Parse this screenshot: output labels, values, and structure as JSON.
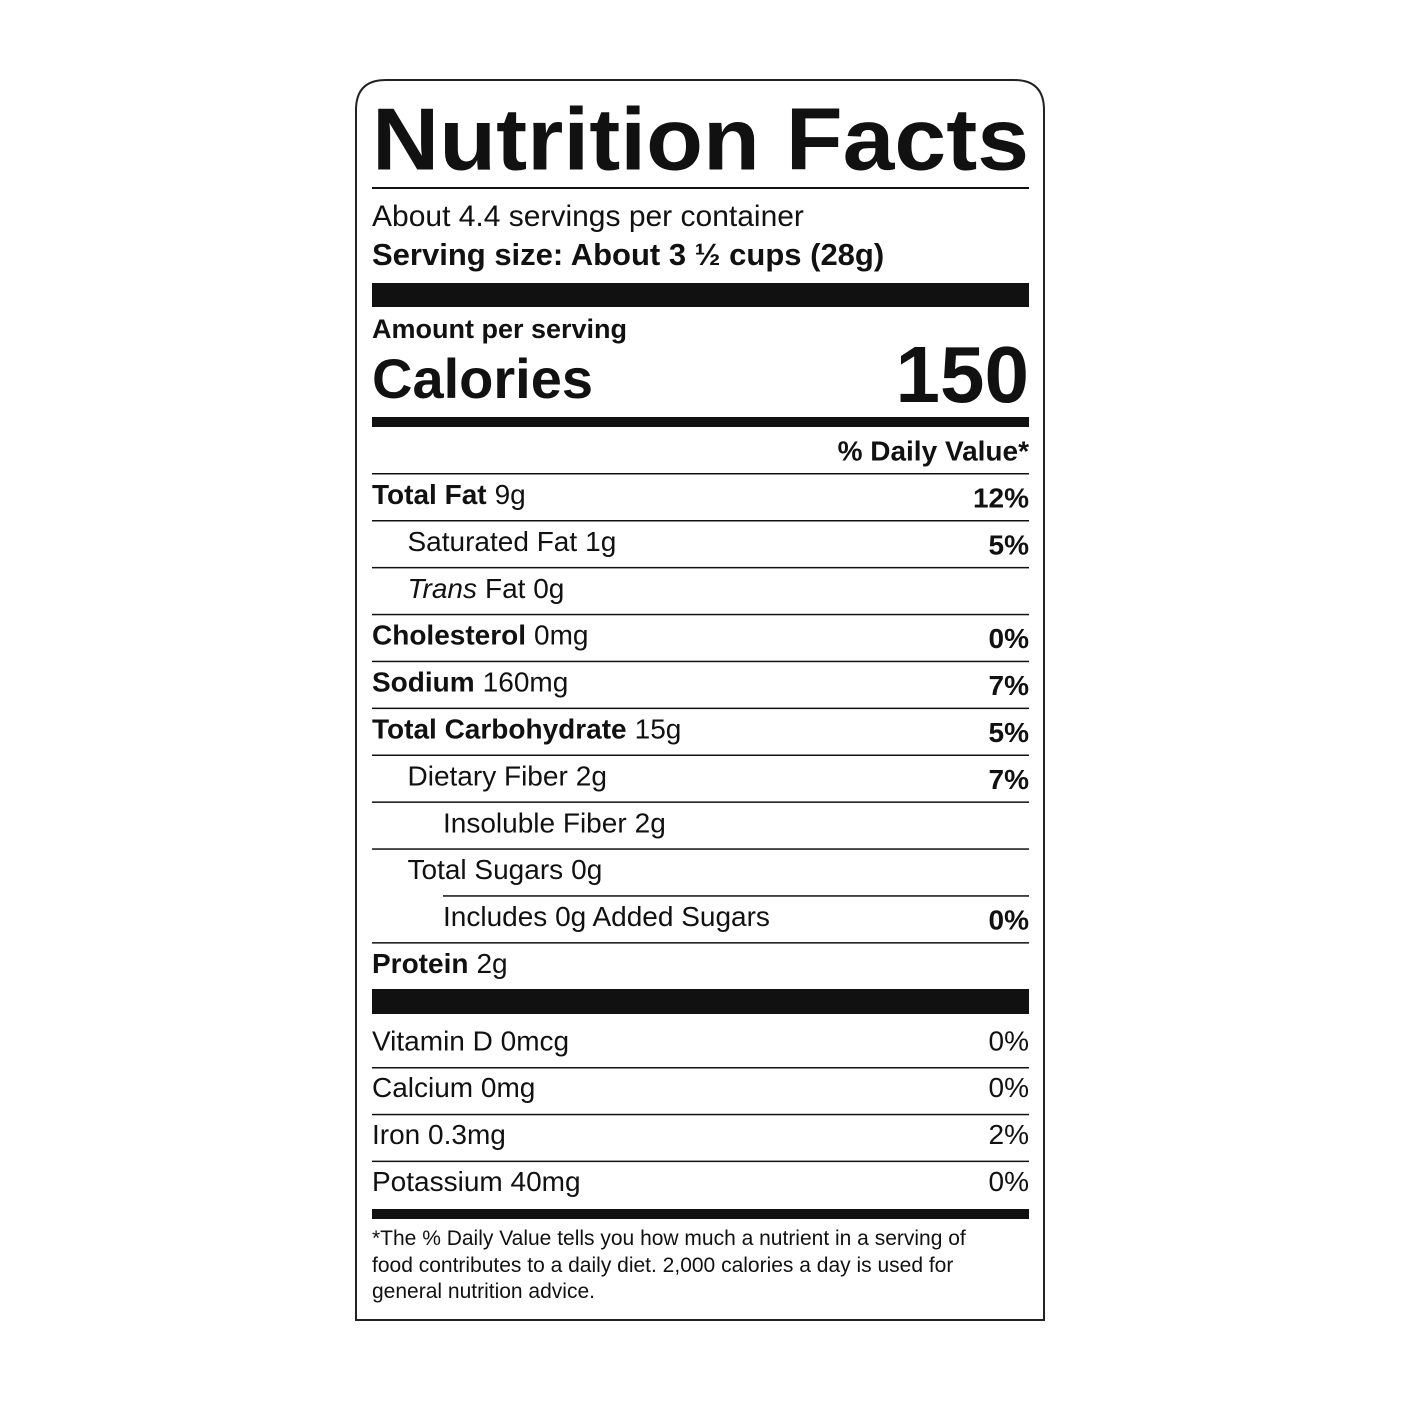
{
  "title": "Nutrition Facts",
  "servings": "About 4.4 servings per container",
  "serving_size": "Serving size: About 3 ½ cups (28g)",
  "amount_per_serving": "Amount per serving",
  "calories": {
    "label": "Calories",
    "value": 150
  },
  "daily_value_header": "% Daily Value*",
  "nutrients": [
    {
      "name": "Total Fat",
      "amount": "9g",
      "dv": "12%",
      "indent": 0,
      "bold": true
    },
    {
      "name": "Saturated Fat",
      "amount": "1g",
      "dv": "5%",
      "indent": 1,
      "bold": false
    },
    {
      "name": "Trans",
      "amount": "Fat 0g",
      "indent": 1,
      "bold": false,
      "italic": true
    },
    {
      "name": "Cholesterol",
      "amount": "0mg",
      "dv": "0%",
      "indent": 0,
      "bold": true
    },
    {
      "name": "Sodium",
      "amount": "160mg",
      "dv": "7%",
      "indent": 0,
      "bold": true
    },
    {
      "name": "Total Carbohydrate",
      "amount": "15g",
      "dv": "5%",
      "indent": 0,
      "bold": true
    },
    {
      "name": "Dietary Fiber",
      "amount": "2g",
      "dv": "7%",
      "indent": 1,
      "bold": false
    },
    {
      "name": "Insoluble Fiber",
      "amount": "2g",
      "indent": 2,
      "bold": false
    },
    {
      "name": "Total Sugars",
      "amount": "0g",
      "indent": 1,
      "bold": false
    },
    {
      "name": "Includes 0g Added Sugars",
      "dv": "0%",
      "indent": 2,
      "bold": false
    },
    {
      "name": "Protein",
      "amount": "2g",
      "indent": 0,
      "bold": true
    }
  ],
  "vitamins": [
    {
      "name": "Vitamin D 0mcg",
      "dv": "0%"
    },
    {
      "name": "Calcium 0mg",
      "dv": "0%"
    },
    {
      "name": "Iron 0.3mg",
      "dv": "2%"
    },
    {
      "name": "Potassium 40mg",
      "dv": "0%"
    }
  ],
  "footnote": "*The % Daily Value tells you how much a nutrient in a serving of food contributes to a daily diet. 2,000 calories a day is used for general nutrition advice."
}
